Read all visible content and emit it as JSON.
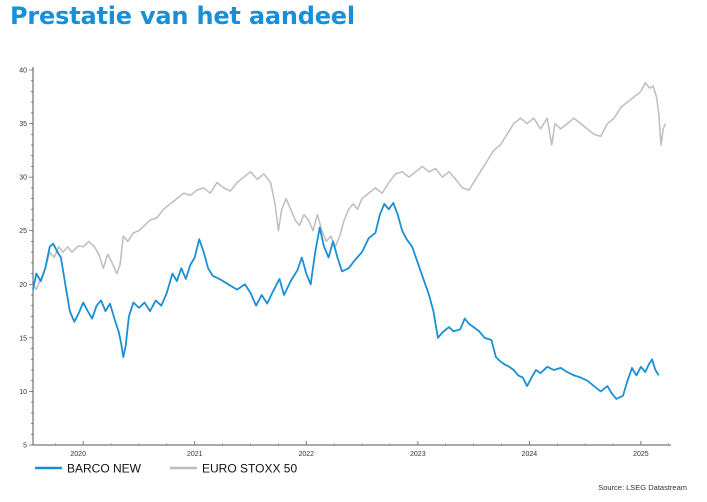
{
  "page": {
    "title": "Prestatie van het aandeel"
  },
  "chart_data": {
    "type": "line",
    "title": "Prestatie van het aandeel",
    "xlabel": "",
    "ylabel": "",
    "ylim": [
      5,
      40
    ],
    "yticks": [
      5,
      10,
      15,
      20,
      25,
      30,
      35,
      40
    ],
    "xlim": [
      2019.55,
      2025.27
    ],
    "xticks": [
      {
        "label": "2020",
        "x": 2020.0
      },
      {
        "label": "2021",
        "x": 2021.0
      },
      {
        "label": "2022",
        "x": 2022.0
      },
      {
        "label": "2023",
        "x": 2023.0
      },
      {
        "label": "2024",
        "x": 2024.0
      },
      {
        "label": "2025",
        "x": 2025.0
      }
    ],
    "grid": false,
    "legend_position": "bottom-left",
    "source": "Source: LSEG Datastream",
    "series": [
      {
        "name": "BARCO NEW",
        "color": "#1a8fd6",
        "points": [
          [
            2019.55,
            19.5
          ],
          [
            2019.58,
            21.0
          ],
          [
            2019.62,
            20.3
          ],
          [
            2019.66,
            21.5
          ],
          [
            2019.7,
            23.5
          ],
          [
            2019.73,
            23.8
          ],
          [
            2019.77,
            23.0
          ],
          [
            2019.8,
            22.5
          ],
          [
            2019.84,
            20.0
          ],
          [
            2019.88,
            17.5
          ],
          [
            2019.92,
            16.5
          ],
          [
            2019.96,
            17.3
          ],
          [
            2020.0,
            18.3
          ],
          [
            2020.04,
            17.5
          ],
          [
            2020.08,
            16.8
          ],
          [
            2020.12,
            18.0
          ],
          [
            2020.16,
            18.5
          ],
          [
            2020.2,
            17.5
          ],
          [
            2020.24,
            18.2
          ],
          [
            2020.28,
            16.8
          ],
          [
            2020.32,
            15.5
          ],
          [
            2020.34,
            14.5
          ],
          [
            2020.36,
            13.2
          ],
          [
            2020.38,
            14.2
          ],
          [
            2020.41,
            17.0
          ],
          [
            2020.45,
            18.3
          ],
          [
            2020.5,
            17.8
          ],
          [
            2020.55,
            18.3
          ],
          [
            2020.6,
            17.5
          ],
          [
            2020.65,
            18.5
          ],
          [
            2020.7,
            18.0
          ],
          [
            2020.75,
            19.2
          ],
          [
            2020.8,
            21.0
          ],
          [
            2020.84,
            20.3
          ],
          [
            2020.88,
            21.5
          ],
          [
            2020.92,
            20.5
          ],
          [
            2020.96,
            21.8
          ],
          [
            2021.0,
            22.5
          ],
          [
            2021.04,
            24.2
          ],
          [
            2021.08,
            23.0
          ],
          [
            2021.12,
            21.5
          ],
          [
            2021.16,
            20.8
          ],
          [
            2021.22,
            20.5
          ],
          [
            2021.3,
            20.0
          ],
          [
            2021.38,
            19.5
          ],
          [
            2021.45,
            20.0
          ],
          [
            2021.5,
            19.2
          ],
          [
            2021.55,
            18.0
          ],
          [
            2021.6,
            19.0
          ],
          [
            2021.65,
            18.2
          ],
          [
            2021.7,
            19.3
          ],
          [
            2021.76,
            20.5
          ],
          [
            2021.8,
            19.0
          ],
          [
            2021.86,
            20.3
          ],
          [
            2021.92,
            21.3
          ],
          [
            2021.96,
            22.5
          ],
          [
            2022.0,
            21.0
          ],
          [
            2022.04,
            20.0
          ],
          [
            2022.08,
            23.0
          ],
          [
            2022.12,
            25.3
          ],
          [
            2022.16,
            23.5
          ],
          [
            2022.2,
            22.5
          ],
          [
            2022.24,
            24.0
          ],
          [
            2022.28,
            22.5
          ],
          [
            2022.32,
            21.2
          ],
          [
            2022.38,
            21.5
          ],
          [
            2022.44,
            22.3
          ],
          [
            2022.5,
            23.0
          ],
          [
            2022.56,
            24.3
          ],
          [
            2022.62,
            24.8
          ],
          [
            2022.66,
            26.5
          ],
          [
            2022.7,
            27.5
          ],
          [
            2022.74,
            27.0
          ],
          [
            2022.78,
            27.6
          ],
          [
            2022.82,
            26.5
          ],
          [
            2022.86,
            25.0
          ],
          [
            2022.9,
            24.2
          ],
          [
            2022.95,
            23.5
          ],
          [
            2023.0,
            22.0
          ],
          [
            2023.05,
            20.5
          ],
          [
            2023.1,
            19.0
          ],
          [
            2023.14,
            17.5
          ],
          [
            2023.18,
            15.0
          ],
          [
            2023.22,
            15.5
          ],
          [
            2023.28,
            16.0
          ],
          [
            2023.32,
            15.6
          ],
          [
            2023.38,
            15.8
          ],
          [
            2023.42,
            16.8
          ],
          [
            2023.46,
            16.3
          ],
          [
            2023.5,
            16.0
          ],
          [
            2023.55,
            15.6
          ],
          [
            2023.6,
            15.0
          ],
          [
            2023.66,
            14.8
          ],
          [
            2023.7,
            13.2
          ],
          [
            2023.74,
            12.8
          ],
          [
            2023.78,
            12.5
          ],
          [
            2023.82,
            12.3
          ],
          [
            2023.86,
            12.0
          ],
          [
            2023.9,
            11.5
          ],
          [
            2023.94,
            11.3
          ],
          [
            2023.98,
            10.5
          ],
          [
            2024.02,
            11.3
          ],
          [
            2024.06,
            12.0
          ],
          [
            2024.1,
            11.7
          ],
          [
            2024.16,
            12.3
          ],
          [
            2024.22,
            12.0
          ],
          [
            2024.28,
            12.2
          ],
          [
            2024.34,
            11.8
          ],
          [
            2024.4,
            11.5
          ],
          [
            2024.46,
            11.3
          ],
          [
            2024.52,
            11.0
          ],
          [
            2024.58,
            10.5
          ],
          [
            2024.64,
            10.0
          ],
          [
            2024.7,
            10.5
          ],
          [
            2024.74,
            9.8
          ],
          [
            2024.78,
            9.3
          ],
          [
            2024.84,
            9.6
          ],
          [
            2024.88,
            11.0
          ],
          [
            2024.92,
            12.2
          ],
          [
            2024.96,
            11.5
          ],
          [
            2025.0,
            12.3
          ],
          [
            2025.04,
            11.8
          ],
          [
            2025.07,
            12.5
          ],
          [
            2025.1,
            13.0
          ],
          [
            2025.13,
            12.0
          ],
          [
            2025.16,
            11.5
          ]
        ]
      },
      {
        "name": "EURO STOXX 50",
        "color": "#bdbdbd",
        "points": [
          [
            2019.55,
            20.0
          ],
          [
            2019.58,
            19.5
          ],
          [
            2019.62,
            20.5
          ],
          [
            2019.66,
            21.5
          ],
          [
            2019.7,
            23.0
          ],
          [
            2019.74,
            22.5
          ],
          [
            2019.78,
            23.5
          ],
          [
            2019.82,
            23.0
          ],
          [
            2019.86,
            23.5
          ],
          [
            2019.9,
            23.0
          ],
          [
            2019.96,
            23.6
          ],
          [
            2020.0,
            23.5
          ],
          [
            2020.05,
            24.0
          ],
          [
            2020.1,
            23.5
          ],
          [
            2020.14,
            22.8
          ],
          [
            2020.18,
            21.5
          ],
          [
            2020.22,
            22.8
          ],
          [
            2020.26,
            22.0
          ],
          [
            2020.3,
            21.0
          ],
          [
            2020.33,
            21.8
          ],
          [
            2020.36,
            24.5
          ],
          [
            2020.4,
            24.0
          ],
          [
            2020.45,
            24.8
          ],
          [
            2020.5,
            25.0
          ],
          [
            2020.55,
            25.5
          ],
          [
            2020.6,
            26.0
          ],
          [
            2020.66,
            26.2
          ],
          [
            2020.72,
            27.0
          ],
          [
            2020.78,
            27.5
          ],
          [
            2020.84,
            28.0
          ],
          [
            2020.9,
            28.5
          ],
          [
            2020.96,
            28.3
          ],
          [
            2021.02,
            28.8
          ],
          [
            2021.08,
            29.0
          ],
          [
            2021.14,
            28.5
          ],
          [
            2021.2,
            29.5
          ],
          [
            2021.26,
            29.0
          ],
          [
            2021.32,
            28.7
          ],
          [
            2021.38,
            29.5
          ],
          [
            2021.44,
            30.0
          ],
          [
            2021.5,
            30.5
          ],
          [
            2021.56,
            29.8
          ],
          [
            2021.62,
            30.3
          ],
          [
            2021.68,
            29.5
          ],
          [
            2021.72,
            27.5
          ],
          [
            2021.75,
            25.0
          ],
          [
            2021.78,
            27.0
          ],
          [
            2021.82,
            28.0
          ],
          [
            2021.86,
            27.0
          ],
          [
            2021.9,
            26.0
          ],
          [
            2021.94,
            25.5
          ],
          [
            2021.98,
            26.5
          ],
          [
            2022.02,
            26.0
          ],
          [
            2022.06,
            25.0
          ],
          [
            2022.1,
            26.5
          ],
          [
            2022.14,
            25.0
          ],
          [
            2022.18,
            24.0
          ],
          [
            2022.22,
            24.5
          ],
          [
            2022.26,
            23.5
          ],
          [
            2022.3,
            24.5
          ],
          [
            2022.34,
            26.0
          ],
          [
            2022.38,
            27.0
          ],
          [
            2022.42,
            27.5
          ],
          [
            2022.46,
            27.0
          ],
          [
            2022.5,
            28.0
          ],
          [
            2022.56,
            28.5
          ],
          [
            2022.62,
            29.0
          ],
          [
            2022.68,
            28.5
          ],
          [
            2022.74,
            29.5
          ],
          [
            2022.8,
            30.3
          ],
          [
            2022.86,
            30.5
          ],
          [
            2022.92,
            30.0
          ],
          [
            2022.98,
            30.5
          ],
          [
            2023.04,
            31.0
          ],
          [
            2023.1,
            30.5
          ],
          [
            2023.16,
            30.8
          ],
          [
            2023.22,
            30.0
          ],
          [
            2023.28,
            30.5
          ],
          [
            2023.34,
            29.8
          ],
          [
            2023.4,
            29.0
          ],
          [
            2023.46,
            28.8
          ],
          [
            2023.5,
            29.5
          ],
          [
            2023.56,
            30.5
          ],
          [
            2023.62,
            31.5
          ],
          [
            2023.68,
            32.5
          ],
          [
            2023.74,
            33.0
          ],
          [
            2023.8,
            34.0
          ],
          [
            2023.86,
            35.0
          ],
          [
            2023.92,
            35.5
          ],
          [
            2023.98,
            35.0
          ],
          [
            2024.04,
            35.5
          ],
          [
            2024.1,
            34.5
          ],
          [
            2024.16,
            35.5
          ],
          [
            2024.2,
            33.0
          ],
          [
            2024.23,
            35.0
          ],
          [
            2024.28,
            34.5
          ],
          [
            2024.34,
            35.0
          ],
          [
            2024.4,
            35.5
          ],
          [
            2024.46,
            35.0
          ],
          [
            2024.52,
            34.5
          ],
          [
            2024.58,
            34.0
          ],
          [
            2024.64,
            33.8
          ],
          [
            2024.7,
            35.0
          ],
          [
            2024.76,
            35.5
          ],
          [
            2024.82,
            36.5
          ],
          [
            2024.88,
            37.0
          ],
          [
            2024.94,
            37.5
          ],
          [
            2025.0,
            38.0
          ],
          [
            2025.04,
            38.8
          ],
          [
            2025.08,
            38.3
          ],
          [
            2025.11,
            38.5
          ],
          [
            2025.14,
            37.5
          ],
          [
            2025.16,
            36.0
          ],
          [
            2025.18,
            33.0
          ],
          [
            2025.2,
            34.5
          ],
          [
            2025.22,
            35.0
          ]
        ]
      }
    ]
  }
}
